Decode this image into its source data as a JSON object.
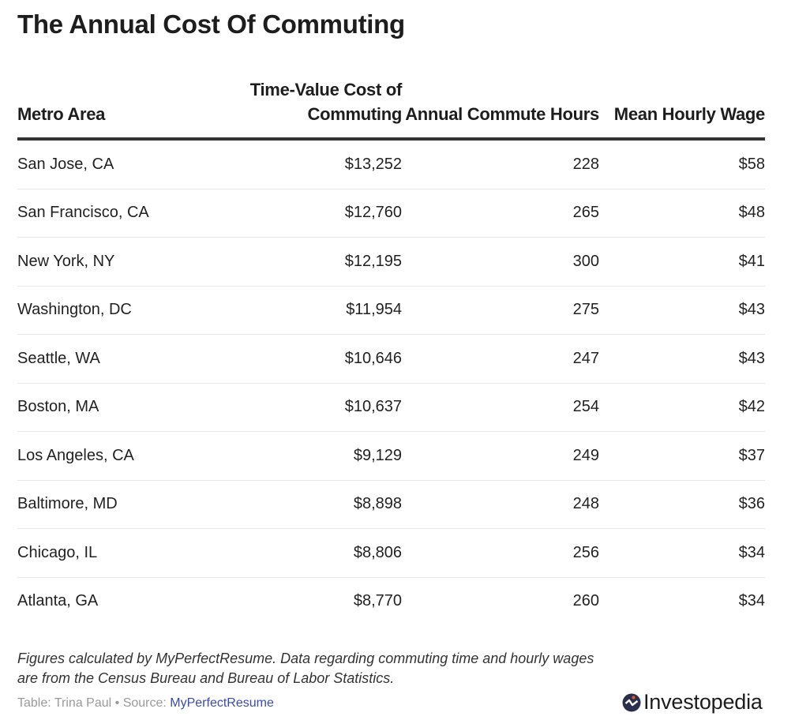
{
  "chart_data": {
    "type": "table",
    "title": "The Annual Cost Of Commuting",
    "columns": [
      "Metro Area",
      "Time-Value Cost of Commuting",
      "Annual Commute Hours",
      "Mean Hourly Wage"
    ],
    "rows": [
      [
        "San Jose, CA",
        "$13,252",
        "228",
        "$58"
      ],
      [
        "San Francisco, CA",
        "$12,760",
        "265",
        "$48"
      ],
      [
        "New York, NY",
        "$12,195",
        "300",
        "$41"
      ],
      [
        "Washington, DC",
        "$11,954",
        "275",
        "$43"
      ],
      [
        "Seattle, WA",
        "$10,646",
        "247",
        "$43"
      ],
      [
        "Boston, MA",
        "$10,637",
        "254",
        "$42"
      ],
      [
        "Los Angeles, CA",
        "$9,129",
        "249",
        "$37"
      ],
      [
        "Baltimore, MD",
        "$8,898",
        "248",
        "$36"
      ],
      [
        "Chicago, IL",
        "$8,806",
        "256",
        "$34"
      ],
      [
        "Atlanta, GA",
        "$8,770",
        "260",
        "$34"
      ]
    ]
  },
  "notes": "Figures calculated by MyPerfectResume. Data regarding commuting time and hourly wages are from the Census Bureau and Bureau of Labor Statistics.",
  "credits": {
    "table_by": "Table: Trina Paul",
    "separator": " • ",
    "source_label": "Source: ",
    "source_link": "MyPerfectResume"
  },
  "logo": {
    "text": "Investopedia",
    "icon": "investopedia-logo-icon"
  },
  "colors": {
    "link": "#3a4bb0",
    "logo_circle": "#2b2f4e",
    "logo_dot": "#e8572a"
  }
}
